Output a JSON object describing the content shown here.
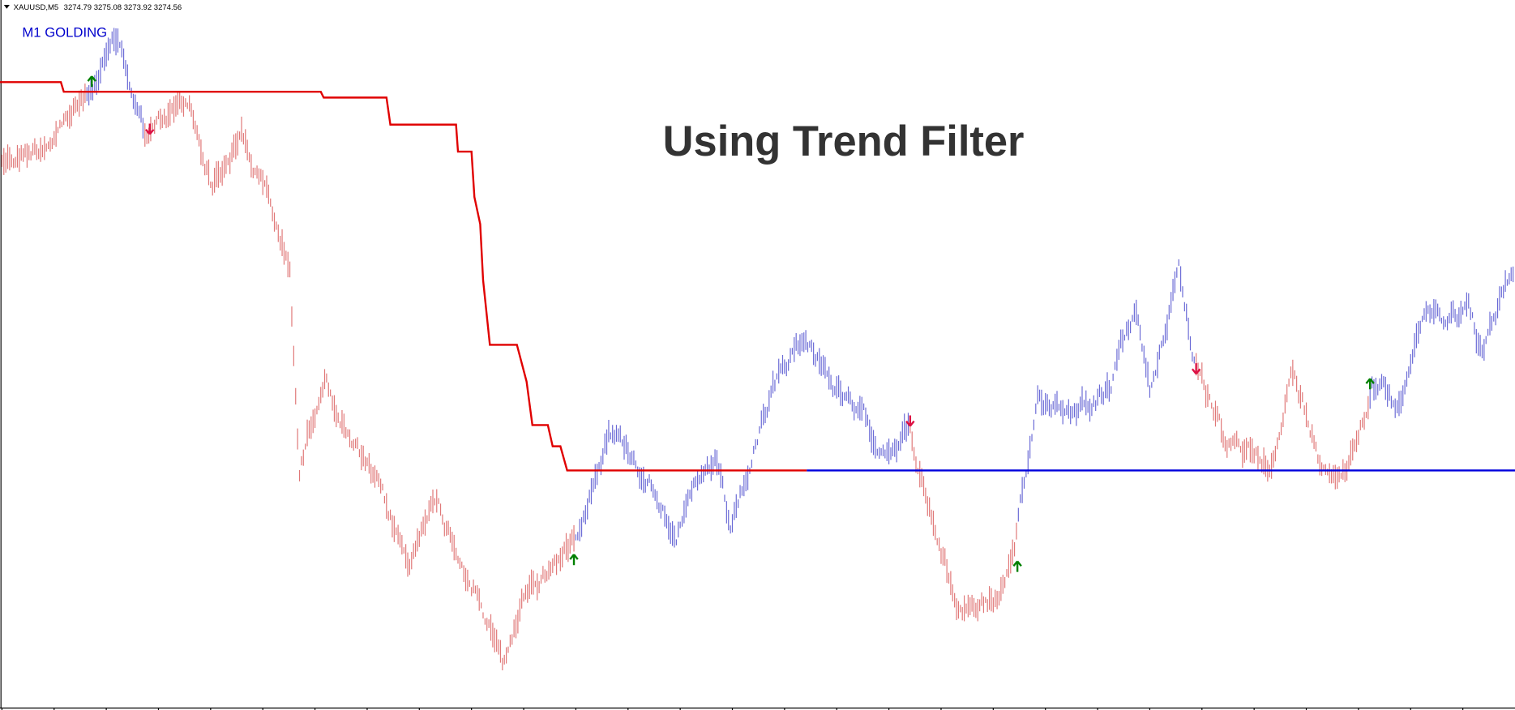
{
  "header": {
    "symbol": "XAUUSD,M5",
    "quote": "3274.79 3275.08 3273.92 3274.56"
  },
  "indicator_label": "M1 GOLDING",
  "overlay_title": "Using Trend Filter"
}
